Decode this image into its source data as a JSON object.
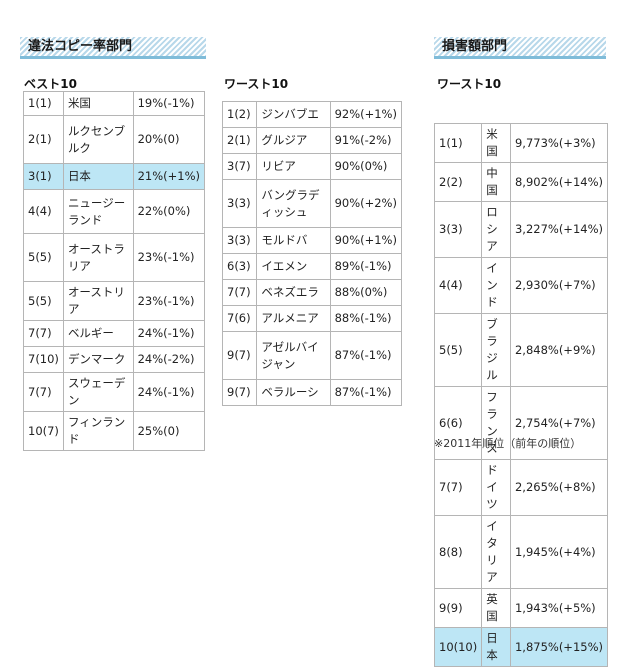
{
  "illegal_section": {
    "title": "違法コピー率部門"
  },
  "damage_section": {
    "title": "損害額部門"
  },
  "best10": {
    "title": "ベスト10",
    "rows": [
      {
        "rank": "1(1)",
        "country": "米国",
        "rate": "19%(-1%)"
      },
      {
        "rank": "2(1)",
        "country": "ルクセンブルク",
        "rate": "20%(0)"
      },
      {
        "rank": "3(1)",
        "country": "日本",
        "rate": "21%(+1%)",
        "highlight": true
      },
      {
        "rank": "4(4)",
        "country": "ニュージーランド",
        "rate": "22%(0%)"
      },
      {
        "rank": "5(5)",
        "country": "オーストラリア",
        "rate": "23%(-1%)"
      },
      {
        "rank": "5(5)",
        "country": "オーストリア",
        "rate": "23%(-1%)"
      },
      {
        "rank": "7(7)",
        "country": "ベルギー",
        "rate": "24%(-1%)"
      },
      {
        "rank": "7(10)",
        "country": "デンマーク",
        "rate": "24%(-2%)"
      },
      {
        "rank": "7(7)",
        "country": "スウェーデン",
        "rate": "24%(-1%)"
      },
      {
        "rank": "10(7)",
        "country": "フィンランド",
        "rate": "25%(0)"
      }
    ]
  },
  "worst10_rate": {
    "title": "ワースト10",
    "rows": [
      {
        "rank": "1(2)",
        "country": "ジンバブエ",
        "rate": "92%(+1%)"
      },
      {
        "rank": "2(1)",
        "country": "グルジア",
        "rate": "91%(-2%)"
      },
      {
        "rank": "3(7)",
        "country": "リビア",
        "rate": "90%(0%)"
      },
      {
        "rank": "3(3)",
        "country": "バングラディッシュ",
        "rate": "90%(+2%)"
      },
      {
        "rank": "3(3)",
        "country": "モルドバ",
        "rate": "90%(+1%)"
      },
      {
        "rank": "6(3)",
        "country": "イエメン",
        "rate": "89%(-1%)"
      },
      {
        "rank": "7(7)",
        "country": "ベネズエラ",
        "rate": "88%(0%)"
      },
      {
        "rank": "7(6)",
        "country": "アルメニア",
        "rate": "88%(-1%)"
      },
      {
        "rank": "9(7)",
        "country": "アゼルバイジャン",
        "rate": "87%(-1%)"
      },
      {
        "rank": "9(7)",
        "country": "ベラルーシ",
        "rate": "87%(-1%)"
      }
    ]
  },
  "worst10_damage": {
    "title": "ワースト10",
    "rows": [
      {
        "rank": "1(1)",
        "country": "米国",
        "rate": "9,773%(+3%)"
      },
      {
        "rank": "2(2)",
        "country": "中国",
        "rate": "8,902%(+14%)"
      },
      {
        "rank": "3(3)",
        "country": "ロシア",
        "rate": "3,227%(+14%)"
      },
      {
        "rank": "4(4)",
        "country": "インド",
        "rate": "2,930%(+7%)"
      },
      {
        "rank": "5(5)",
        "country": "ブラジル",
        "rate": "2,848%(+9%)"
      },
      {
        "rank": "6(6)",
        "country": "フランス",
        "rate": "2,754%(+7%)"
      },
      {
        "rank": "7(7)",
        "country": "ドイツ",
        "rate": "2,265%(+8%)"
      },
      {
        "rank": "8(8)",
        "country": "イタリア",
        "rate": "1,945%(+4%)"
      },
      {
        "rank": "9(9)",
        "country": "英国",
        "rate": "1,943%(+5%)"
      },
      {
        "rank": "10(10)",
        "country": "日本",
        "rate": "1,875%(+15%)",
        "highlight": true
      }
    ]
  },
  "footnote": "※2011年順位（前年の順位）"
}
